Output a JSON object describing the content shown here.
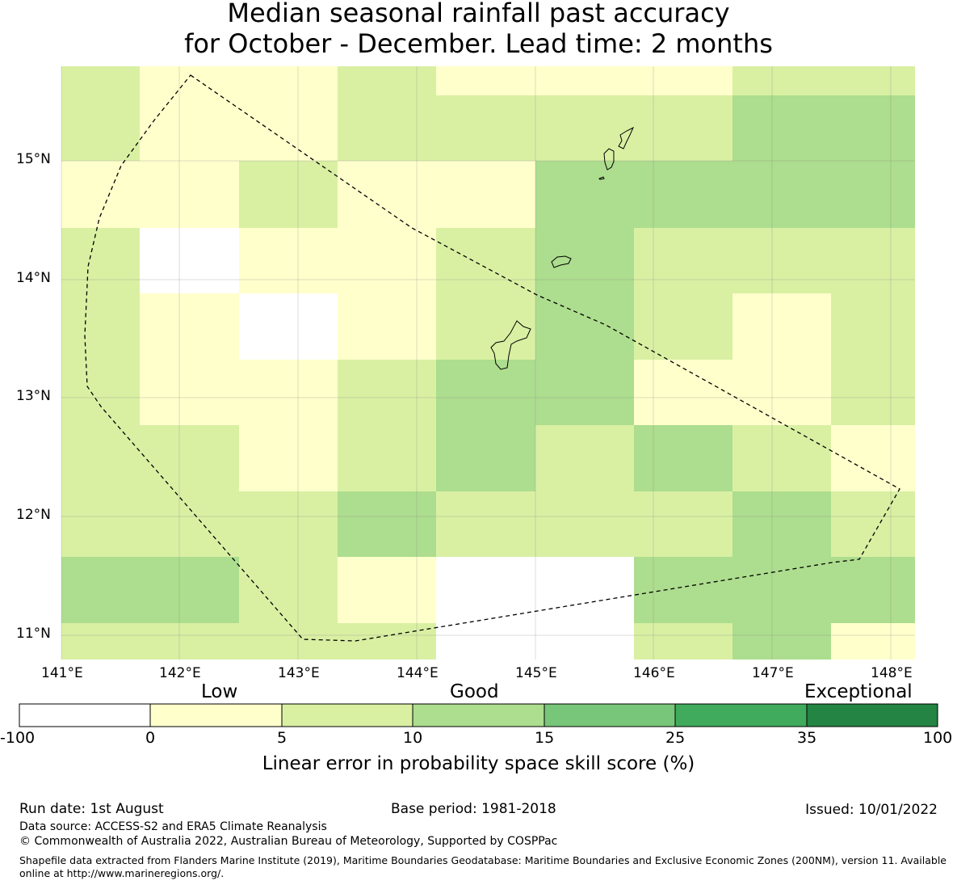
{
  "title": {
    "line1": "Median seasonal rainfall past accuracy",
    "line2": "for October - December. Lead time: 2 months"
  },
  "map": {
    "lon_range": [
      141,
      148.2
    ],
    "lat_range": [
      10.8,
      15.8
    ],
    "x_ticks": [
      "141°E",
      "142°E",
      "143°E",
      "144°E",
      "145°E",
      "146°E",
      "147°E",
      "148°E"
    ],
    "y_ticks": [
      "15°N",
      "14°N",
      "13°N",
      "12°N",
      "11°N"
    ],
    "colors": {
      "none": "#ffffff",
      "c0_5": "#ffffcc",
      "c5_10": "#d9f0a3",
      "c10_15": "#addd8e",
      "c15_25": "#78c679",
      "c25_35": "#41ab5d",
      "c35_100": "#238443"
    }
  },
  "legend": {
    "categories": [
      "Low",
      "Good",
      "Exceptional"
    ],
    "ticks": [
      "-100",
      "0",
      "5",
      "10",
      "15",
      "25",
      "35",
      "100"
    ],
    "colors": [
      "#ffffff",
      "#ffffcc",
      "#d9f0a3",
      "#addd8e",
      "#78c679",
      "#41ab5d",
      "#238443"
    ],
    "label": "Linear error in probability space skill score (%)"
  },
  "footer": {
    "run_date": "Run date: 1st August",
    "base_period": "Base period: 1981-2018",
    "issued": "Issued: 10/01/2022",
    "data_source": "Data source: ACCESS-S2 and ERA5 Climate Reanalysis",
    "copyright": "© Commonwealth of Australia 2022, Australian Bureau of Meteorology, Supported by COSPPac",
    "shapefile": "Shapefile data extracted from Flanders Marine Institute (2019), Maritime Boundaries Geodatabase: Maritime Boundaries and Exclusive Economic Zones (200NM), version 11. Available online at http://www.marineregions.org/."
  }
}
